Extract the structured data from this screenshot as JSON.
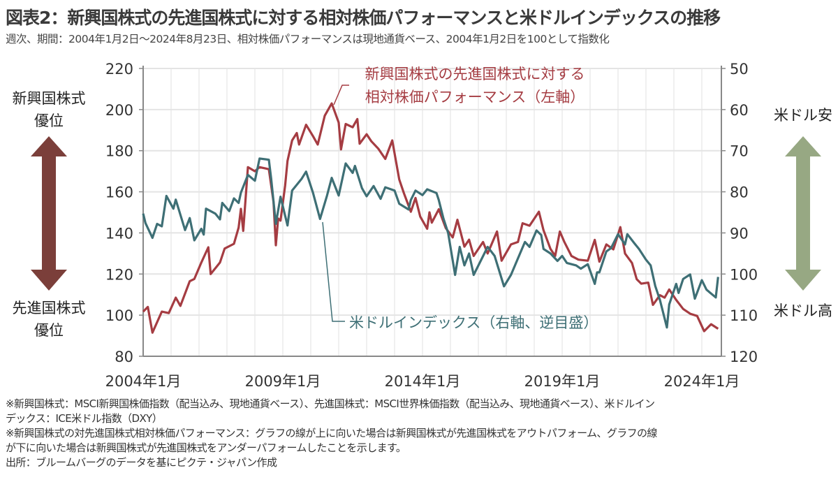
{
  "title": "図表2：新興国株式の先進国株式に対する相対株価パフォーマンスと米ドルインデックスの推移",
  "subtitle": "週次、期間：2004年1月2日～2024年8月23日、相対株価パフォーマンスは現地通貨ベース、2004年1月2日を100として指数化",
  "notes": [
    "※新興国株式：MSCI新興国株価指数（配当込み、現地通貨ベース）、先進国株式：MSCI世界株価指数（配当込み、現地通貨ベース）、米ドルイン",
    "デックス：ICE米ドル指数（DXY）",
    "※新興国株式の対先進国株式相対株価パフォーマンス：グラフの線が上に向いた場合は新興国株式が先進国株式をアウトパフォーム、グラフの線",
    "が下に向いた場合は新興国株式が先進国株式をアンダーパフォームしたことを示します。",
    "出所：ブルームバーグのデータを基にピクテ・ジャパン作成"
  ],
  "side_labels": {
    "left_top": [
      "新興国株式",
      "優位"
    ],
    "left_bottom": [
      "先進国株式",
      "優位"
    ],
    "right_top": "米ドル安",
    "right_bottom": "米ドル高",
    "left_arrow_color": "#7b3f3a",
    "right_arrow_color": "#97a883"
  },
  "chart_data": {
    "type": "line",
    "x_ticks": [
      "2004年1月",
      "2009年1月",
      "2014年1月",
      "2019年1月",
      "2024年1月"
    ],
    "y_left": {
      "ticks": [
        80,
        100,
        120,
        140,
        160,
        180,
        200,
        220
      ],
      "ylim": [
        80,
        220
      ]
    },
    "y_right": {
      "ticks": [
        50,
        60,
        70,
        80,
        90,
        100,
        110,
        120
      ],
      "ylim": [
        50,
        120
      ],
      "inverted": true
    },
    "grid": true,
    "series": [
      {
        "name": "新興国株式の先進国株式に対する相対株価パフォーマンス（左軸）",
        "label_lines": [
          "新興国株式の先進国株式に対する",
          "相対株価パフォーマンス（左軸）"
        ],
        "axis": "left",
        "color": "#a53c42",
        "points": [
          [
            "2004-01",
            101.7
          ],
          [
            "2004-03",
            104
          ],
          [
            "2004-05",
            91.5
          ],
          [
            "2004-09",
            101.7
          ],
          [
            "2004-12",
            101
          ],
          [
            "2005-03",
            108.5
          ],
          [
            "2005-05",
            104.5
          ],
          [
            "2005-09",
            116.5
          ],
          [
            "2005-11",
            117.6
          ],
          [
            "2006-02",
            125.6
          ],
          [
            "2006-05",
            133
          ],
          [
            "2006-06",
            120
          ],
          [
            "2006-10",
            125.6
          ],
          [
            "2006-12",
            132.4
          ],
          [
            "2007-04",
            134.7
          ],
          [
            "2007-06",
            142.6
          ],
          [
            "2007-07",
            151.7
          ],
          [
            "2007-08",
            141
          ],
          [
            "2007-10",
            172
          ],
          [
            "2008-01",
            170
          ],
          [
            "2008-03",
            172
          ],
          [
            "2008-07",
            171
          ],
          [
            "2008-09",
            155
          ],
          [
            "2008-10",
            134
          ],
          [
            "2008-11",
            147
          ],
          [
            "2008-12",
            146
          ],
          [
            "2009-02",
            163
          ],
          [
            "2009-03",
            175
          ],
          [
            "2009-05",
            185
          ],
          [
            "2009-07",
            188.6
          ],
          [
            "2009-08",
            183
          ],
          [
            "2009-11",
            192.6
          ],
          [
            "2010-02",
            187
          ],
          [
            "2010-04",
            183
          ],
          [
            "2010-07",
            197
          ],
          [
            "2010-10",
            203
          ],
          [
            "2011-01",
            193.7
          ],
          [
            "2011-02",
            180.6
          ],
          [
            "2011-04",
            193
          ],
          [
            "2011-07",
            191.4
          ],
          [
            "2011-09",
            195.4
          ],
          [
            "2011-10",
            183.4
          ],
          [
            "2012-01",
            188
          ],
          [
            "2012-03",
            184.6
          ],
          [
            "2012-06",
            181
          ],
          [
            "2012-09",
            176
          ],
          [
            "2012-12",
            185
          ],
          [
            "2013-03",
            166
          ],
          [
            "2013-05",
            159.4
          ],
          [
            "2013-08",
            150.3
          ],
          [
            "2013-10",
            157
          ],
          [
            "2013-12",
            148
          ],
          [
            "2014-03",
            142
          ],
          [
            "2014-04",
            150
          ],
          [
            "2014-05",
            145
          ],
          [
            "2014-08",
            151.5
          ],
          [
            "2014-11",
            142.4
          ],
          [
            "2015-02",
            137.8
          ],
          [
            "2015-04",
            146.4
          ],
          [
            "2015-07",
            133.3
          ],
          [
            "2015-09",
            136.7
          ],
          [
            "2015-11",
            128.8
          ],
          [
            "2016-03",
            135.6
          ],
          [
            "2016-05",
            130
          ],
          [
            "2016-09",
            140.7
          ],
          [
            "2016-11",
            126.5
          ],
          [
            "2017-03",
            134.4
          ],
          [
            "2017-06",
            135.6
          ],
          [
            "2017-08",
            144.7
          ],
          [
            "2017-11",
            143.5
          ],
          [
            "2018-03",
            150.3
          ],
          [
            "2018-05",
            141.3
          ],
          [
            "2018-08",
            132.2
          ],
          [
            "2018-10",
            128.8
          ],
          [
            "2018-12",
            140.7
          ],
          [
            "2019-02",
            135.5
          ],
          [
            "2019-05",
            128.8
          ],
          [
            "2019-08",
            127
          ],
          [
            "2019-12",
            126.5
          ],
          [
            "2020-03",
            136.6
          ],
          [
            "2020-05",
            126
          ],
          [
            "2020-08",
            134.4
          ],
          [
            "2020-11",
            132
          ],
          [
            "2021-02",
            142.8
          ],
          [
            "2021-04",
            130
          ],
          [
            "2021-07",
            125.4
          ],
          [
            "2021-09",
            117.5
          ],
          [
            "2021-11",
            115.3
          ],
          [
            "2022-02",
            115.8
          ],
          [
            "2022-04",
            105
          ],
          [
            "2022-07",
            109.7
          ],
          [
            "2022-09",
            108.5
          ],
          [
            "2022-11",
            112.5
          ],
          [
            "2023-02",
            107.4
          ],
          [
            "2023-05",
            103
          ],
          [
            "2023-08",
            100.7
          ],
          [
            "2023-11",
            99.6
          ],
          [
            "2024-02",
            92.2
          ],
          [
            "2024-05",
            95.6
          ],
          [
            "2024-08",
            93.4
          ]
        ]
      },
      {
        "name": "米ドルインデックス（右軸、逆目盛）",
        "label_lines": [
          "米ドルインデックス（右軸、逆目盛）"
        ],
        "axis": "right",
        "color": "#3e6f75",
        "points": [
          [
            "2004-01",
            85.3
          ],
          [
            "2004-02",
            87.6
          ],
          [
            "2004-05",
            91.2
          ],
          [
            "2004-07",
            87.8
          ],
          [
            "2004-09",
            88.4
          ],
          [
            "2004-11",
            81
          ],
          [
            "2005-02",
            84.1
          ],
          [
            "2005-03",
            81.9
          ],
          [
            "2005-07",
            89.3
          ],
          [
            "2005-09",
            86.4
          ],
          [
            "2005-11",
            91.8
          ],
          [
            "2006-02",
            89
          ],
          [
            "2006-03",
            90.4
          ],
          [
            "2006-04",
            84.1
          ],
          [
            "2006-08",
            85.3
          ],
          [
            "2006-10",
            86.7
          ],
          [
            "2006-11",
            82.7
          ],
          [
            "2007-02",
            84.7
          ],
          [
            "2007-04",
            81.6
          ],
          [
            "2007-06",
            82.7
          ],
          [
            "2007-07",
            80.2
          ],
          [
            "2007-10",
            75.9
          ],
          [
            "2008-01",
            77.3
          ],
          [
            "2008-03",
            71.9
          ],
          [
            "2008-07",
            72.2
          ],
          [
            "2008-08",
            76.8
          ],
          [
            "2008-10",
            87.8
          ],
          [
            "2008-12",
            81.2
          ],
          [
            "2009-03",
            88.2
          ],
          [
            "2009-05",
            79.7
          ],
          [
            "2009-09",
            76.9
          ],
          [
            "2009-11",
            75.1
          ],
          [
            "2010-02",
            80.3
          ],
          [
            "2010-05",
            86.6
          ],
          [
            "2010-08",
            80.9
          ],
          [
            "2010-10",
            76.6
          ],
          [
            "2011-01",
            80.9
          ],
          [
            "2011-04",
            73.1
          ],
          [
            "2011-07",
            75.4
          ],
          [
            "2011-08",
            73.7
          ],
          [
            "2011-11",
            79.1
          ],
          [
            "2012-01",
            81.1
          ],
          [
            "2012-04",
            78.6
          ],
          [
            "2012-07",
            81.7
          ],
          [
            "2012-09",
            78.9
          ],
          [
            "2013-01",
            79.7
          ],
          [
            "2013-03",
            82.9
          ],
          [
            "2013-07",
            84.3
          ],
          [
            "2013-08",
            82
          ],
          [
            "2013-10",
            79.7
          ],
          [
            "2014-01",
            80.8
          ],
          [
            "2014-03",
            79.4
          ],
          [
            "2014-07",
            80.3
          ],
          [
            "2014-08",
            82
          ],
          [
            "2014-10",
            86.5
          ],
          [
            "2014-12",
            90
          ],
          [
            "2015-03",
            100.2
          ],
          [
            "2015-05",
            93.4
          ],
          [
            "2015-07",
            97.9
          ],
          [
            "2015-09",
            95
          ],
          [
            "2015-11",
            100.2
          ],
          [
            "2016-02",
            96.8
          ],
          [
            "2016-05",
            93.4
          ],
          [
            "2016-08",
            95.6
          ],
          [
            "2016-12",
            103
          ],
          [
            "2017-03",
            100.2
          ],
          [
            "2017-06",
            96.2
          ],
          [
            "2017-09",
            92.2
          ],
          [
            "2017-11",
            93.4
          ],
          [
            "2018-02",
            89.4
          ],
          [
            "2018-04",
            90.5
          ],
          [
            "2018-05",
            93.9
          ],
          [
            "2018-08",
            95
          ],
          [
            "2018-11",
            96.8
          ],
          [
            "2019-01",
            95.6
          ],
          [
            "2019-03",
            97.3
          ],
          [
            "2019-07",
            97.9
          ],
          [
            "2019-09",
            98.7
          ],
          [
            "2019-12",
            97.6
          ],
          [
            "2020-03",
            102.4
          ],
          [
            "2020-04",
            99.6
          ],
          [
            "2020-05",
            99.6
          ],
          [
            "2020-08",
            94.5
          ],
          [
            "2020-10",
            93.7
          ],
          [
            "2021-01",
            90.3
          ],
          [
            "2021-04",
            92.8
          ],
          [
            "2021-05",
            90.3
          ],
          [
            "2021-08",
            92.5
          ],
          [
            "2021-10",
            93.9
          ],
          [
            "2022-01",
            96.5
          ],
          [
            "2022-03",
            97.9
          ],
          [
            "2022-05",
            102.9
          ],
          [
            "2022-07",
            106.3
          ],
          [
            "2022-10",
            113
          ],
          [
            "2022-11",
            107.4
          ],
          [
            "2023-02",
            102.4
          ],
          [
            "2023-03",
            104.6
          ],
          [
            "2023-05",
            101.2
          ],
          [
            "2023-08",
            100.1
          ],
          [
            "2023-10",
            106
          ],
          [
            "2024-01",
            101.5
          ],
          [
            "2024-03",
            103.8
          ],
          [
            "2024-07",
            105.7
          ],
          [
            "2024-08",
            100.7
          ]
        ]
      }
    ]
  }
}
